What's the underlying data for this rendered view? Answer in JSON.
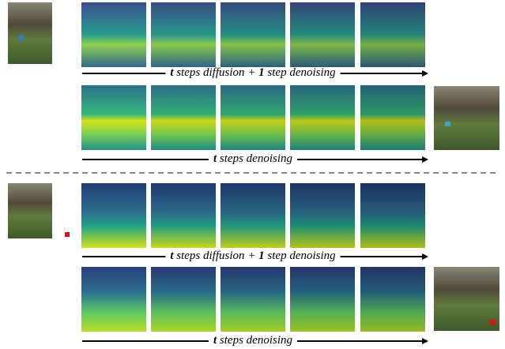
{
  "panels": [
    {
      "rows": [
        {
          "label": [
            "t",
            " steps diffusion + ",
            "1",
            " step denoising"
          ]
        },
        {
          "label": [
            "t",
            " steps denoising"
          ]
        }
      ]
    },
    {
      "rows": [
        {
          "label": [
            "t",
            " steps diffusion + ",
            "1",
            " step denoising"
          ]
        },
        {
          "label": [
            "t",
            " steps denoising"
          ]
        }
      ]
    }
  ]
}
